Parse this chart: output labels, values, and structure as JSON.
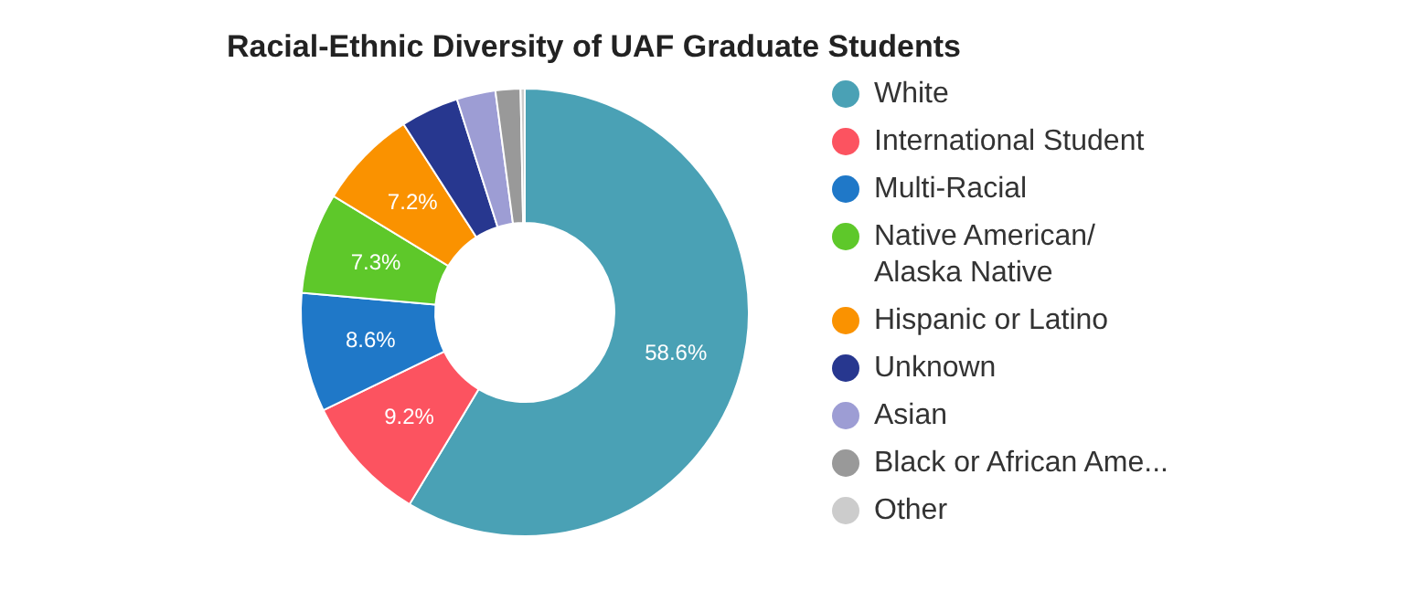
{
  "chart_data": {
    "type": "donut",
    "title": "Racial-Ethnic Diversity of UAF Graduate Students",
    "categories": [
      "White",
      "International Student",
      "Multi-Racial",
      "Native American/ Alaska Native",
      "Hispanic or Latino",
      "Unknown",
      "Asian",
      "Black or African Ame...",
      "Other"
    ],
    "values": [
      58.6,
      9.2,
      8.6,
      7.3,
      7.2,
      4.2,
      2.8,
      1.8,
      0.3
    ],
    "colors": [
      "#4aa1b5",
      "#fc5360",
      "#1f78c8",
      "#5ec82a",
      "#fa9200",
      "#27378f",
      "#9d9dd4",
      "#999999",
      "#cccccc"
    ],
    "value_labels": [
      "58.6%",
      "9.2%",
      "8.6%",
      "7.3%",
      "7.2%",
      null,
      null,
      null,
      null
    ],
    "legend": "right"
  }
}
